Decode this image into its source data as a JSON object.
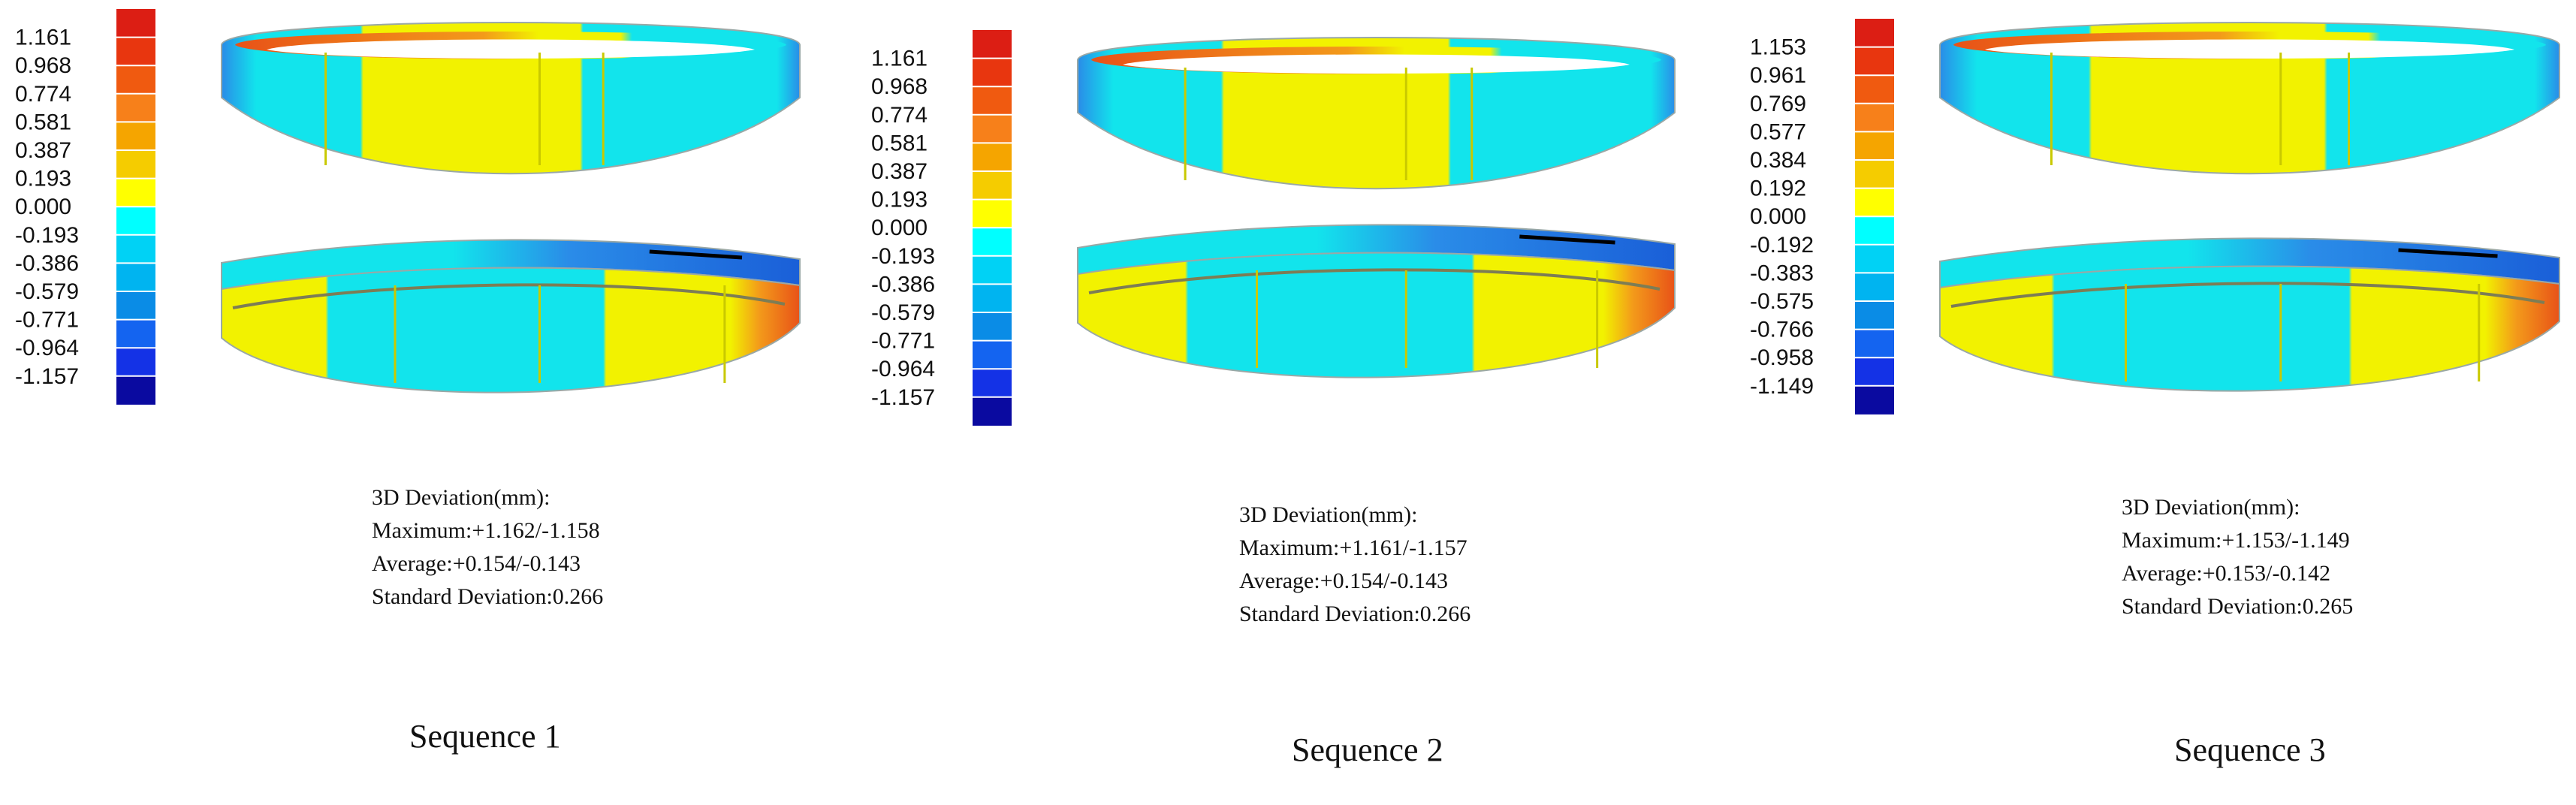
{
  "figure": {
    "panels": [
      {
        "caption": "Sequence 1",
        "scale_ticks": [
          "1.161",
          "0.968",
          "0.774",
          "0.581",
          "0.387",
          "0.193",
          "0.000",
          "-0.193",
          "-0.386",
          "-0.579",
          "-0.771",
          "-0.964",
          "-1.157"
        ],
        "deviation": {
          "heading": "3D Deviation(mm):",
          "maximum": "Maximum:+1.162/-1.158",
          "average": "Average:+0.154/-0.143",
          "std": "Standard Deviation:0.266"
        }
      },
      {
        "caption": "Sequence 2",
        "scale_ticks": [
          "1.161",
          "0.968",
          "0.774",
          "0.581",
          "0.387",
          "0.193",
          "0.000",
          "-0.193",
          "-0.386",
          "-0.579",
          "-0.771",
          "-0.964",
          "-1.157"
        ],
        "deviation": {
          "heading": "3D Deviation(mm):",
          "maximum": "Maximum:+1.161/-1.157",
          "average": "Average:+0.154/-0.143",
          "std": "Standard Deviation:0.266"
        }
      },
      {
        "caption": "Sequence 3",
        "scale_ticks": [
          "1.153",
          "0.961",
          "0.769",
          "0.577",
          "0.384",
          "0.192",
          "0.000",
          "-0.192",
          "-0.383",
          "-0.575",
          "-0.766",
          "-0.958",
          "-1.149"
        ],
        "deviation": {
          "heading": "3D Deviation(mm):",
          "maximum": "Maximum:+1.153/-1.149",
          "average": "Average:+0.153/-0.142",
          "std": "Standard Deviation:0.265"
        }
      }
    ],
    "colors": {
      "scale": [
        "#dc1e14",
        "#e8360f",
        "#f05a10",
        "#f7801a",
        "#f5a500",
        "#f5cc00",
        "#ffff00",
        "#00ffff",
        "#00d2f5",
        "#00b4f0",
        "#0a8ce6",
        "#1464f0",
        "#1432e6",
        "#0a0aa0"
      ],
      "yellow": "#f2f200",
      "cyan": "#12e4ec",
      "orange": "#f39a1a",
      "red": "#e85218",
      "blue": "#2a8ce8",
      "deep_blue": "#1a5fd8",
      "rim": "#9aa8a6"
    }
  }
}
